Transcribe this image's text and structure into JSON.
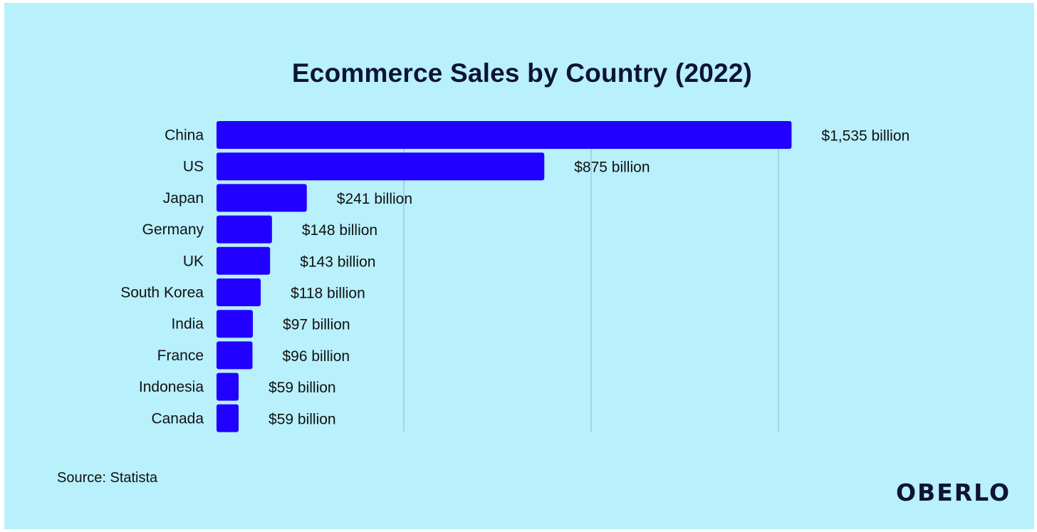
{
  "chart_data": {
    "type": "bar",
    "orientation": "horizontal",
    "title": "Ecommerce Sales by Country (2022)",
    "categories": [
      "China",
      "US",
      "Japan",
      "Germany",
      "UK",
      "South Korea",
      "India",
      "France",
      "Indonesia",
      "Canada"
    ],
    "values": [
      1535,
      875,
      241,
      148,
      143,
      118,
      97,
      96,
      59,
      59
    ],
    "value_labels": [
      "$1,535 billion",
      "$875 billion",
      "$241 billion",
      "$148 billion",
      "$143 billion",
      "$118 billion",
      "$97 billion",
      "$96 billion",
      "$59 billion",
      "$59 billion"
    ],
    "unit": "billion USD",
    "xlim": [
      0,
      1500
    ],
    "grid": true,
    "colors": {
      "bar": "#2200ff",
      "background": "#b8f0fc",
      "grid": "#8fb8c4",
      "text": "#111111"
    }
  },
  "footer": {
    "source": "Source: Statista",
    "brand": "OBERLO"
  }
}
